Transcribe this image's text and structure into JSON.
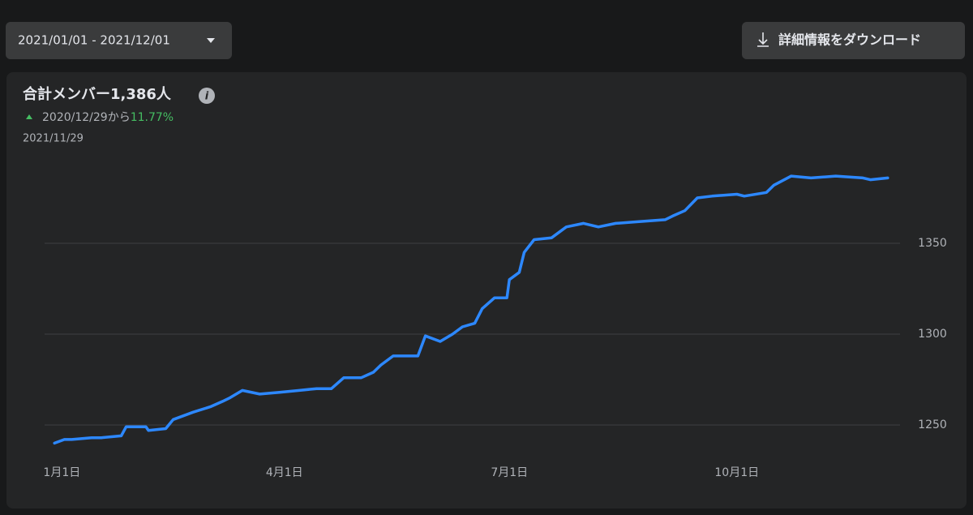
{
  "toolbar": {
    "date_range": "2021/01/01 - 2021/12/01",
    "download": "詳細情報をダウンロード"
  },
  "chart_data": {
    "type": "line",
    "title": "合計メンバー1,386人",
    "subtitle": "2020/12/29から",
    "change": "11.77%",
    "date": "2021/11/29",
    "x": [
      -3,
      1,
      4,
      12,
      16,
      24,
      26,
      34,
      35,
      42,
      45,
      49,
      53,
      60,
      65,
      68,
      73,
      80,
      88,
      96,
      103,
      109,
      114,
      121,
      126,
      129,
      134,
      139,
      144,
      147,
      153,
      158,
      162,
      167,
      170,
      175,
      180,
      181,
      185,
      187,
      191,
      198,
      204,
      211,
      217,
      224,
      234,
      244,
      247,
      252,
      257,
      263,
      273,
      276,
      285,
      288,
      295,
      303,
      313,
      324,
      327,
      334
    ],
    "values": [
      1240,
      1242,
      1242,
      1243,
      1243,
      1244,
      1249,
      1249,
      1247,
      1248,
      1253,
      1255,
      1257,
      1260,
      1263,
      1265,
      1269,
      1267,
      1268,
      1269,
      1270,
      1270,
      1276,
      1276,
      1279,
      1283,
      1288,
      1288,
      1288,
      1299,
      1296,
      1300,
      1304,
      1306,
      1314,
      1320,
      1320,
      1330,
      1334,
      1345,
      1352,
      1353,
      1359,
      1361,
      1359,
      1361,
      1362,
      1363,
      1365,
      1368,
      1375,
      1376,
      1377,
      1376,
      1378,
      1382,
      1387,
      1386,
      1387,
      1386,
      1385,
      1386
    ],
    "color": "#2d88ff",
    "xlim": [
      -7,
      339
    ],
    "xticks": [
      {
        "value": 0,
        "label": "1月1日"
      },
      {
        "value": 90,
        "label": "4月1日"
      },
      {
        "value": 181,
        "label": "7月1日"
      },
      {
        "value": 273,
        "label": "10月1日"
      }
    ],
    "ylim": [
      1235,
      1395
    ],
    "yticks": [
      1250,
      1300,
      1350
    ],
    "grid": true
  }
}
